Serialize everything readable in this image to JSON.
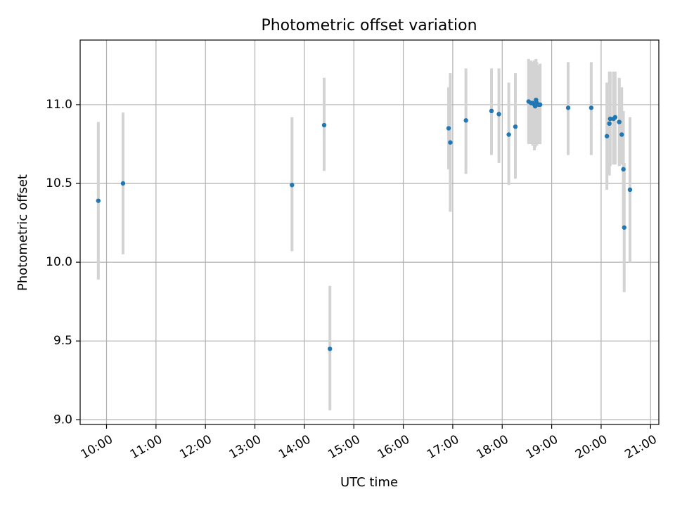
{
  "chart_data": {
    "type": "scatter",
    "title": "Photometric offset variation",
    "xlabel": "UTC time",
    "ylabel": "Photometric offset",
    "xlim": [
      "09:28",
      "21:10"
    ],
    "ylim": [
      8.97,
      11.41
    ],
    "grid": true,
    "x_ticks": [
      "10:00",
      "11:00",
      "12:00",
      "13:00",
      "14:00",
      "15:00",
      "16:00",
      "17:00",
      "18:00",
      "19:00",
      "20:00",
      "21:00"
    ],
    "y_ticks": [
      9.0,
      9.5,
      10.0,
      10.5,
      11.0
    ],
    "y_tick_labels": [
      "9.0",
      "9.5",
      "10.0",
      "10.5",
      "11.0"
    ],
    "colors": {
      "points": "#1f77b4",
      "errorbars": "#d3d3d3",
      "grid": "#b0b0b0"
    },
    "points": [
      {
        "time": "09:50",
        "value": 10.39,
        "err_low": 9.89,
        "err_high": 10.89
      },
      {
        "time": "10:20",
        "value": 10.5,
        "err_low": 10.05,
        "err_high": 10.95
      },
      {
        "time": "13:45",
        "value": 10.49,
        "err_low": 10.07,
        "err_high": 10.92
      },
      {
        "time": "14:24",
        "value": 10.87,
        "err_low": 10.58,
        "err_high": 11.17
      },
      {
        "time": "14:31",
        "value": 9.45,
        "err_low": 9.06,
        "err_high": 9.85
      },
      {
        "time": "16:55",
        "value": 10.85,
        "err_low": 10.59,
        "err_high": 11.11
      },
      {
        "time": "16:57",
        "value": 10.76,
        "err_low": 10.32,
        "err_high": 11.2
      },
      {
        "time": "17:16",
        "value": 10.9,
        "err_low": 10.56,
        "err_high": 11.23
      },
      {
        "time": "17:47",
        "value": 10.96,
        "err_low": 10.68,
        "err_high": 11.23
      },
      {
        "time": "17:56",
        "value": 10.94,
        "err_low": 10.63,
        "err_high": 11.23
      },
      {
        "time": "18:08",
        "value": 10.81,
        "err_low": 10.49,
        "err_high": 11.14
      },
      {
        "time": "18:16",
        "value": 10.86,
        "err_low": 10.53,
        "err_high": 11.2
      },
      {
        "time": "18:32",
        "value": 11.02,
        "err_low": 10.75,
        "err_high": 11.29
      },
      {
        "time": "18:35",
        "value": 11.01,
        "err_low": 10.75,
        "err_high": 11.28
      },
      {
        "time": "18:37",
        "value": 11.01,
        "err_low": 10.74,
        "err_high": 11.27
      },
      {
        "time": "18:39",
        "value": 11.0,
        "err_low": 10.71,
        "err_high": 11.28
      },
      {
        "time": "18:40",
        "value": 10.99,
        "err_low": 10.73,
        "err_high": 11.26
      },
      {
        "time": "18:41",
        "value": 11.03,
        "err_low": 10.75,
        "err_high": 11.29
      },
      {
        "time": "18:42",
        "value": 11.01,
        "err_low": 10.74,
        "err_high": 11.27
      },
      {
        "time": "18:44",
        "value": 11.0,
        "err_low": 10.75,
        "err_high": 11.25
      },
      {
        "time": "18:46",
        "value": 11.0,
        "err_low": 10.75,
        "err_high": 11.26
      },
      {
        "time": "19:20",
        "value": 10.98,
        "err_low": 10.68,
        "err_high": 11.27
      },
      {
        "time": "19:48",
        "value": 10.98,
        "err_low": 10.68,
        "err_high": 11.27
      },
      {
        "time": "20:07",
        "value": 10.8,
        "err_low": 10.46,
        "err_high": 11.14
      },
      {
        "time": "20:10",
        "value": 10.88,
        "err_low": 10.55,
        "err_high": 11.21
      },
      {
        "time": "20:11",
        "value": 10.91,
        "err_low": 10.61,
        "err_high": 11.21
      },
      {
        "time": "20:15",
        "value": 10.91,
        "err_low": 10.62,
        "err_high": 11.21
      },
      {
        "time": "20:17",
        "value": 10.92,
        "err_low": 10.62,
        "err_high": 11.21
      },
      {
        "time": "20:22",
        "value": 10.89,
        "err_low": 10.61,
        "err_high": 11.17
      },
      {
        "time": "20:25",
        "value": 10.81,
        "err_low": 10.62,
        "err_high": 11.11
      },
      {
        "time": "20:27",
        "value": 10.59,
        "err_low": 10.23,
        "err_high": 10.96
      },
      {
        "time": "20:28",
        "value": 10.22,
        "err_low": 9.81,
        "err_high": 10.63
      },
      {
        "time": "20:35",
        "value": 10.46,
        "err_low": 10.0,
        "err_high": 10.92
      }
    ]
  }
}
